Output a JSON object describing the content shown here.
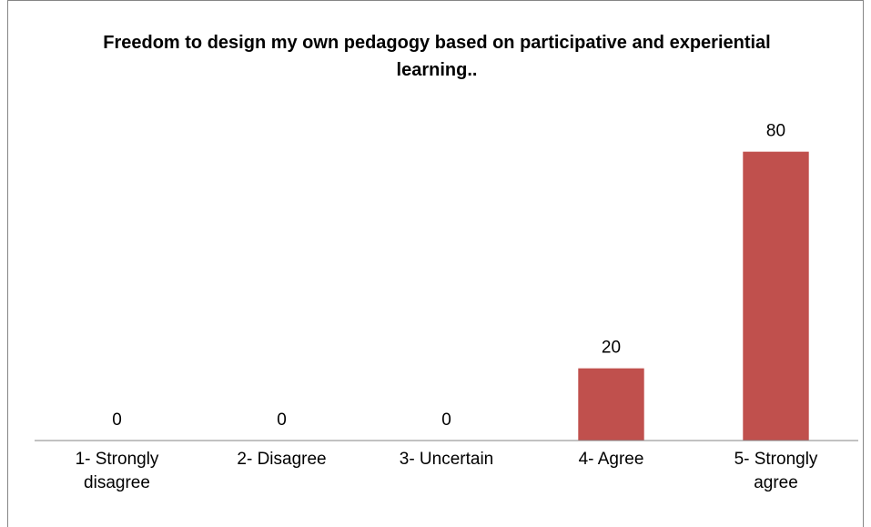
{
  "chart_data": {
    "type": "bar",
    "title": "Freedom to design my own pedagogy based on participative and experiential learning..",
    "categories": [
      "1- Strongly disagree",
      "2- Disagree",
      "3- Uncertain",
      "4- Agree",
      "5- Strongly agree"
    ],
    "values": [
      0,
      0,
      0,
      20,
      80
    ],
    "color": "#c0504d",
    "ylim": [
      0,
      90
    ]
  }
}
